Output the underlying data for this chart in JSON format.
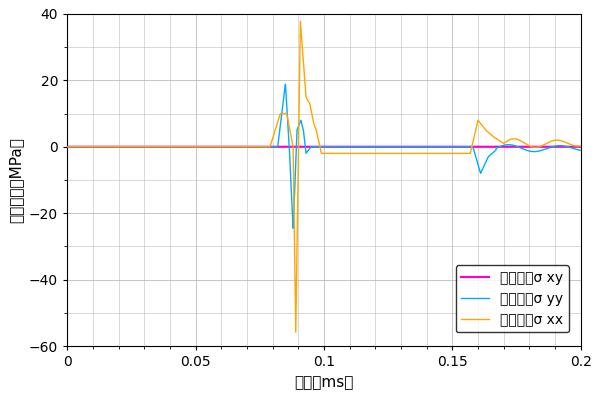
{
  "title": "",
  "xlabel": "時刻（ms）",
  "ylabel": "応力成分（MPa）",
  "xlim": [
    0,
    0.2
  ],
  "ylim": [
    -60,
    40
  ],
  "yticks": [
    -60,
    -40,
    -20,
    0,
    20,
    40
  ],
  "xticks": [
    0,
    0.05,
    0.1,
    0.15,
    0.2
  ],
  "xtick_labels": [
    "0",
    "0.05",
    "0.1",
    "0.15",
    "0.2"
  ],
  "legend_labels": [
    "応力成分σ xx",
    "応力成分σ yy",
    "応力成分σ xy"
  ],
  "colors": {
    "sxx": "#FFA500",
    "syy": "#00AAFF",
    "sxy": "#FF00CC"
  },
  "grid_color": "#BBBBBB",
  "background_color": "#FFFFFF",
  "linewidth": 1.0
}
